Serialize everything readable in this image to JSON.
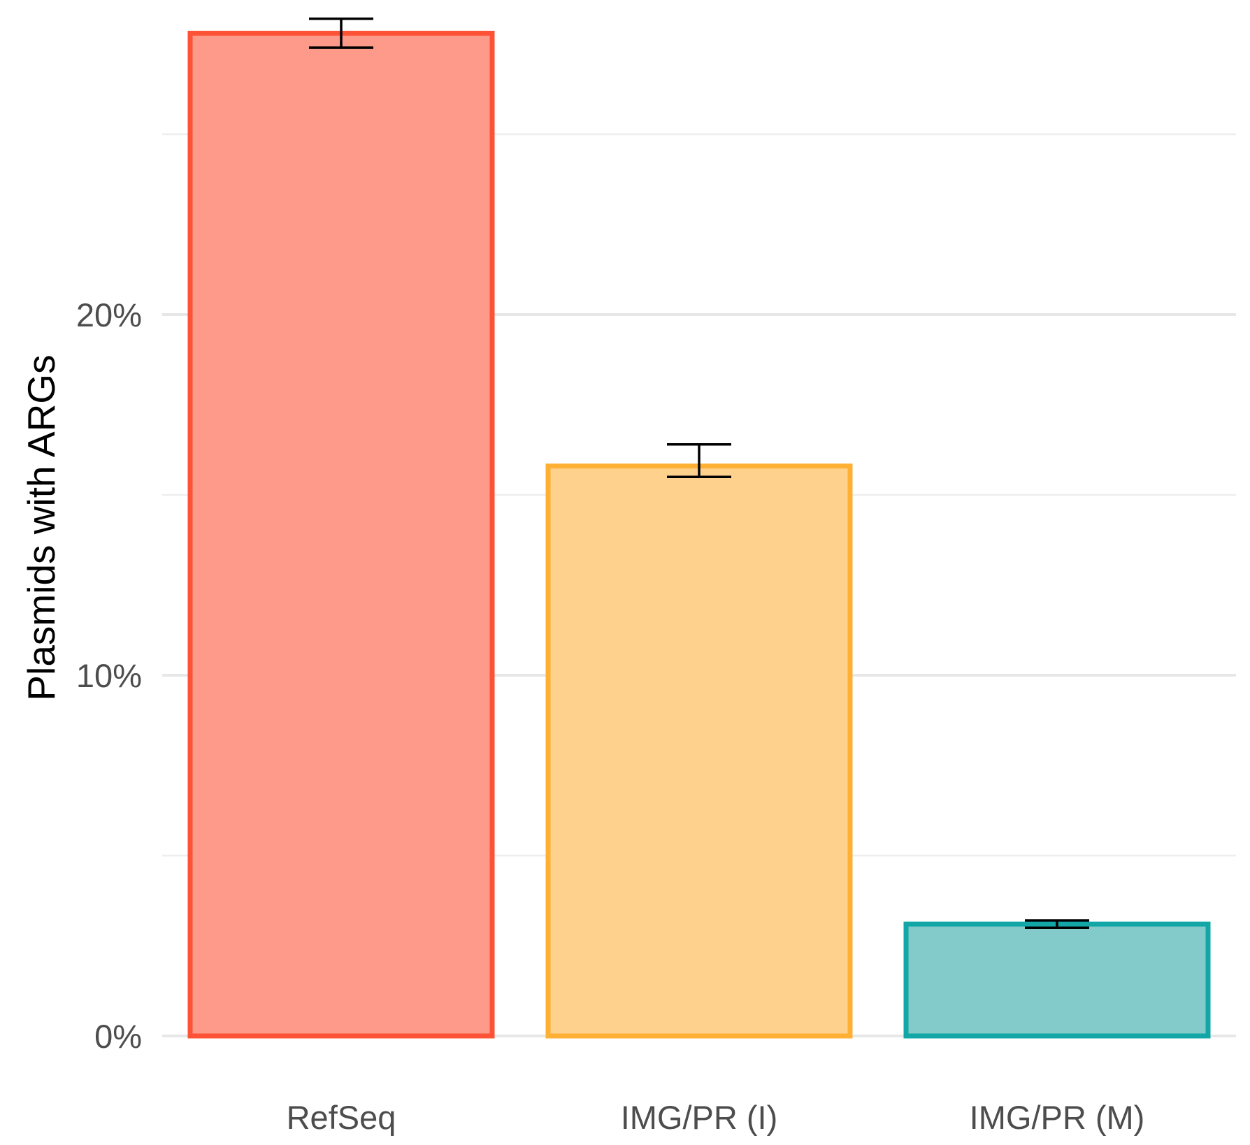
{
  "chart_data": {
    "type": "bar",
    "title": "",
    "xlabel": "",
    "ylabel": "Plasmids with ARGs",
    "categories": [
      "RefSeq",
      "IMG/PR (I)",
      "IMG/PR (M)"
    ],
    "values": [
      27.8,
      15.8,
      3.1
    ],
    "error": [
      {
        "low": 27.4,
        "high": 28.2
      },
      {
        "low": 15.5,
        "high": 16.4
      },
      {
        "low": 3.0,
        "high": 3.2
      }
    ],
    "ylim": [
      0,
      28.5
    ],
    "y_ticks": [
      0,
      10,
      20
    ],
    "y_tick_labels": [
      "0%",
      "10%",
      "20%"
    ],
    "y_minor_gridlines": [
      5,
      15,
      25
    ],
    "grid": true,
    "legend": "none",
    "colors": {
      "fill": [
        "#fd9a89",
        "#fed18d",
        "#83cacb"
      ],
      "stroke": [
        "#fd5236",
        "#fdb033",
        "#12a6a6"
      ],
      "grid_major": "#e7e7e7",
      "grid_minor": "#eeeeee",
      "error_bars": "#000000"
    }
  }
}
